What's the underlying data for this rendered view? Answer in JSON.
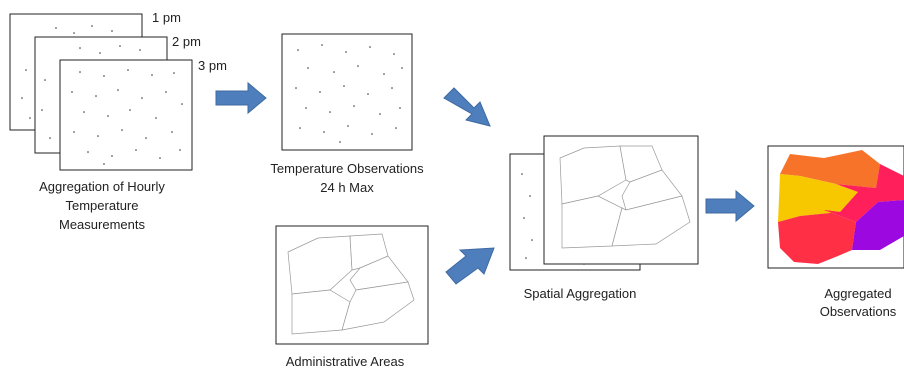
{
  "hourly_panels": {
    "times": [
      "1 pm",
      "2 pm",
      "3 pm"
    ],
    "caption_lines": [
      "Aggregation of Hourly",
      "Temperature",
      "Measurements"
    ]
  },
  "observations_panel": {
    "caption_lines": [
      "Temperature Observations",
      "24 h Max"
    ]
  },
  "admin_panel": {
    "caption": "Administrative Areas"
  },
  "spatial_panel": {
    "caption": "Spatial Aggregation"
  },
  "aggregated_panel": {
    "caption_lines": [
      "Aggregated",
      "Observations"
    ],
    "region_colors": [
      "#f7732a",
      "#f7c800",
      "#ff1f5a",
      "#ff2f45",
      "#9b08e0"
    ]
  }
}
